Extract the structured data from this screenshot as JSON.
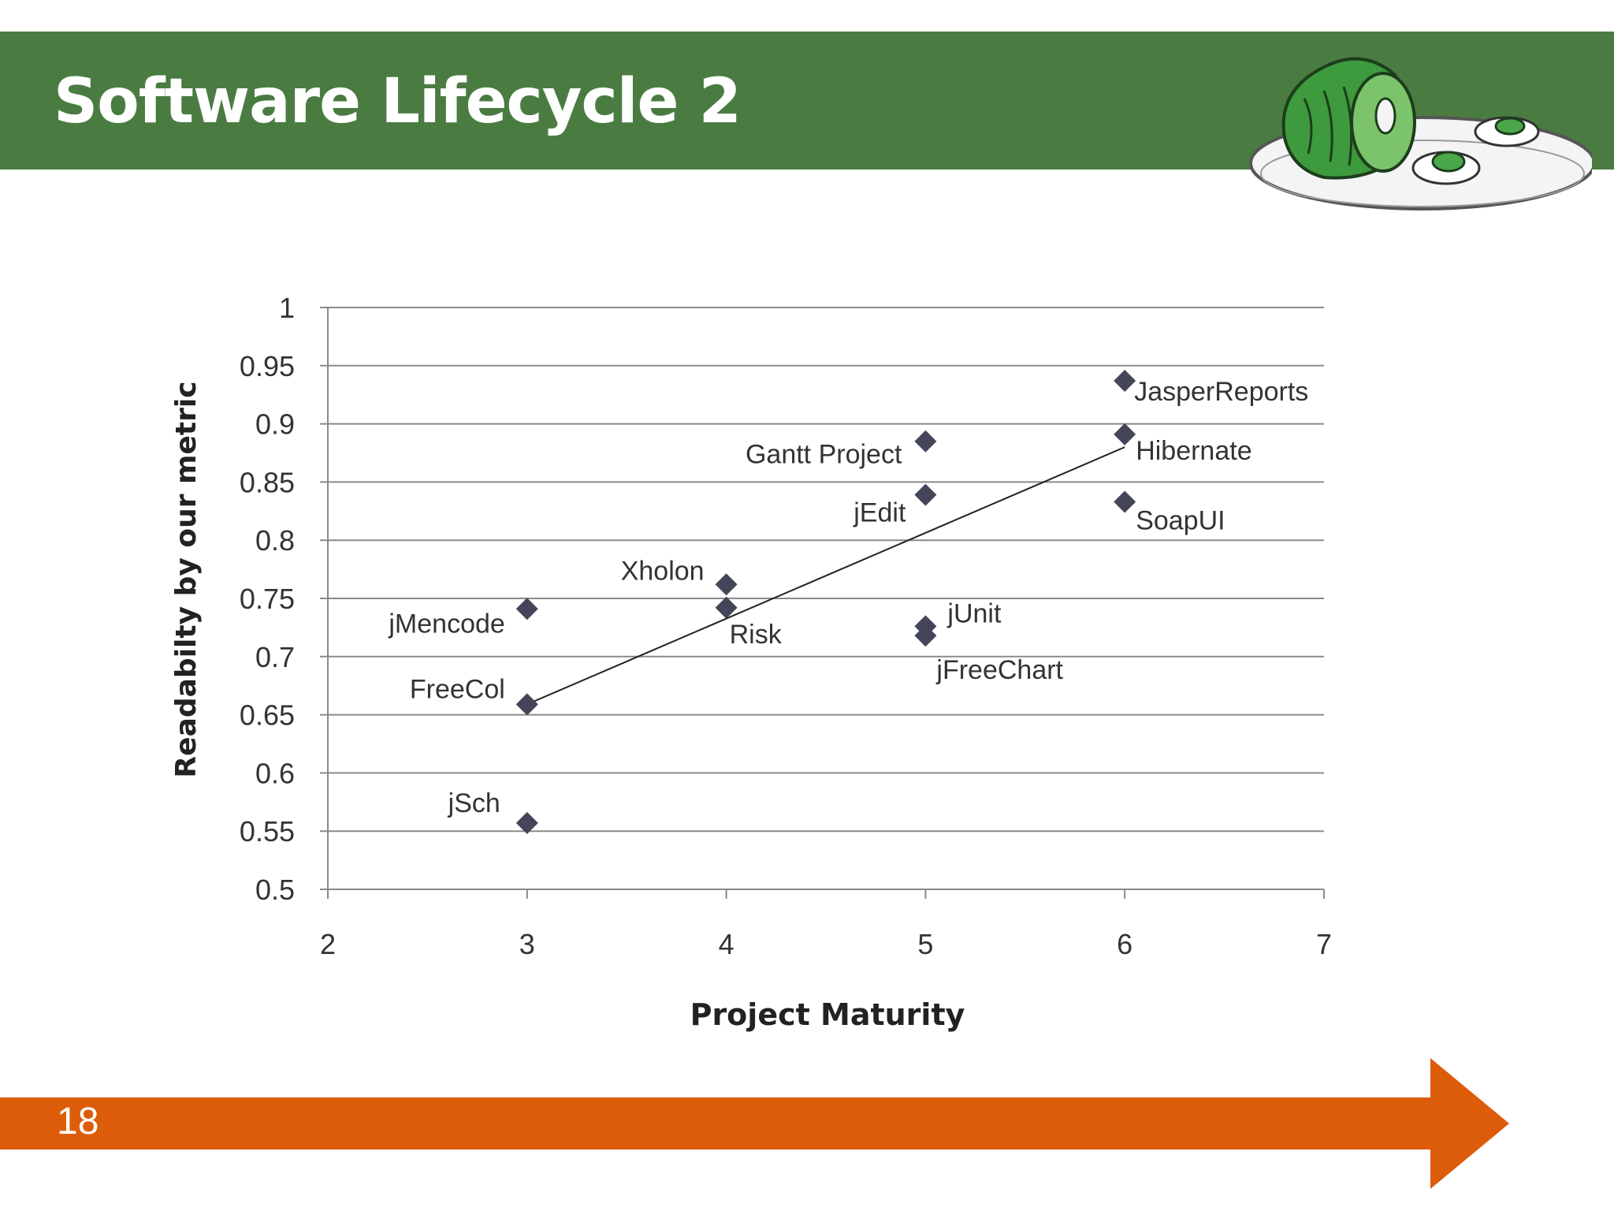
{
  "slide": {
    "title": "Software Lifecycle 2",
    "page_number": "18",
    "colors": {
      "title_bar": "#4a7c42",
      "footer_arrow": "#dd5c0a",
      "marker": "#45455a"
    },
    "decoration": "green-eggs-and-ham-plate-icon"
  },
  "chart_data": {
    "type": "scatter",
    "xlabel": "Project Maturity",
    "ylabel": "Readabilty by our metric",
    "xlim": [
      2,
      7
    ],
    "ylim": [
      0.5,
      1
    ],
    "x_ticks": [
      "2",
      "3",
      "4",
      "5",
      "6",
      "7"
    ],
    "y_ticks": [
      "0.5",
      "0.55",
      "0.6",
      "0.65",
      "0.7",
      "0.75",
      "0.8",
      "0.85",
      "0.9",
      "0.95",
      "1"
    ],
    "grid": "horizontal",
    "legend": "none",
    "points": [
      {
        "label": "JasperReports",
        "x": 6,
        "y": 0.937
      },
      {
        "label": "Hibernate",
        "x": 6,
        "y": 0.891
      },
      {
        "label": "SoapUI",
        "x": 6,
        "y": 0.833
      },
      {
        "label": "Gantt Project",
        "x": 5,
        "y": 0.885
      },
      {
        "label": "jEdit",
        "x": 5,
        "y": 0.839
      },
      {
        "label": "jUnit",
        "x": 5,
        "y": 0.726
      },
      {
        "label": "jFreeChart",
        "x": 5,
        "y": 0.718
      },
      {
        "label": "Xholon",
        "x": 4,
        "y": 0.762
      },
      {
        "label": "Risk",
        "x": 4,
        "y": 0.742
      },
      {
        "label": "jMencode",
        "x": 3,
        "y": 0.741
      },
      {
        "label": "FreeCol",
        "x": 3,
        "y": 0.659
      },
      {
        "label": "jSch",
        "x": 3,
        "y": 0.557
      }
    ],
    "trendline": {
      "x": [
        3,
        6
      ],
      "y": [
        0.659,
        0.88
      ]
    }
  }
}
